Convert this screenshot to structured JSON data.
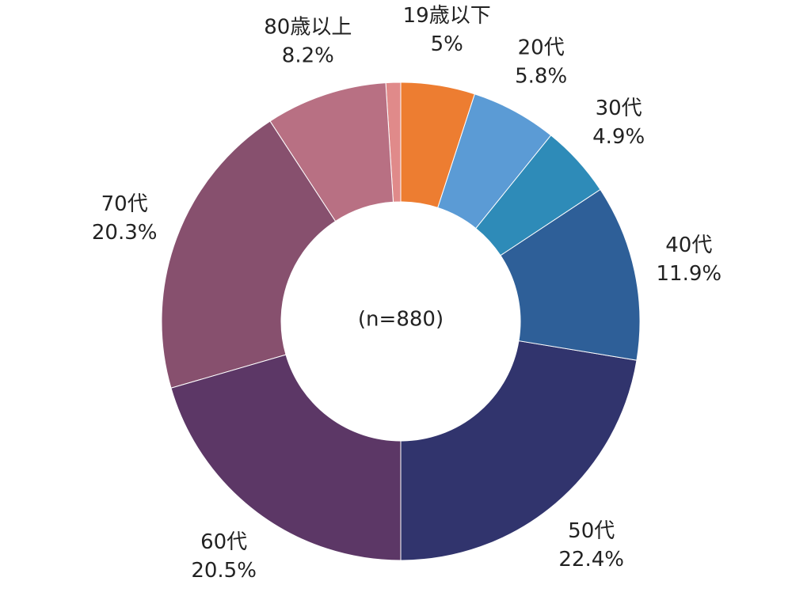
{
  "chart_data": {
    "type": "donut",
    "center_label": "(n=880)",
    "categories": [
      "19歳以下",
      "20代",
      "30代",
      "40代",
      "50代",
      "60代",
      "70代",
      "80歳以上",
      null
    ],
    "values": [
      5,
      5.8,
      4.9,
      11.9,
      22.4,
      20.5,
      20.3,
      8.2,
      1.0
    ],
    "value_labels": [
      "5%",
      "5.8%",
      "4.9%",
      "11.9%",
      "22.4%",
      "20.5%",
      "20.3%",
      "8.2%",
      null
    ],
    "colors": [
      "#ed7d31",
      "#5b9bd5",
      "#2e8bb8",
      "#2e5f98",
      "#31346d",
      "#5c3766",
      "#87506e",
      "#b87083",
      "#e08a8a"
    ]
  }
}
